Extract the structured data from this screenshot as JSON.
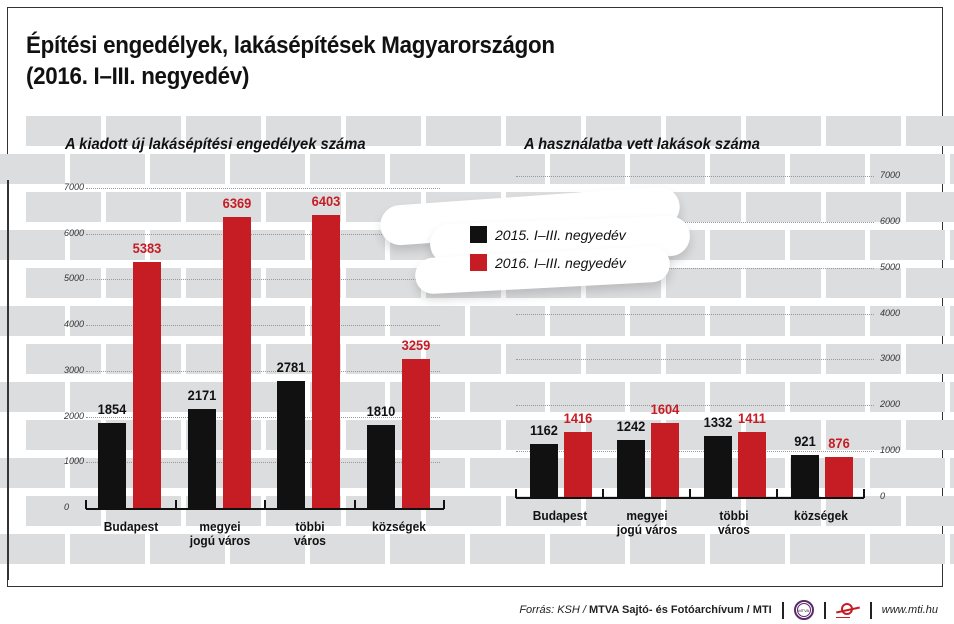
{
  "title": {
    "line1": "Építési engedélyek, lakásépítések Magyarországon",
    "line2": "(2016. I–III. negyedév)"
  },
  "legend": {
    "items": [
      {
        "label": "2015. I–III. negyedév",
        "color": "#111111"
      },
      {
        "label": "2016. I–III. negyedév",
        "color": "#c61c24"
      }
    ]
  },
  "colors": {
    "series_2015": "#111111",
    "series_2016": "#c61c24",
    "brick": "#dcdddf"
  },
  "charts": {
    "left": {
      "subtitle": "A kiadott új lakásépítési engedélyek száma",
      "ticks": [
        "0",
        "1000",
        "2000",
        "3000",
        "4000",
        "5000",
        "6000",
        "7000"
      ],
      "categories": [
        "Budapest",
        "megyei jogú város",
        "többi város",
        "községek"
      ],
      "cat_lines": [
        [
          "Budapest",
          ""
        ],
        [
          "megyei",
          "jogú város"
        ],
        [
          "többi",
          "város"
        ],
        [
          "községek",
          ""
        ]
      ],
      "v2015": [
        "1854",
        "2171",
        "2781",
        "1810"
      ],
      "v2016": [
        "5383",
        "6369",
        "6403",
        "3259"
      ]
    },
    "right": {
      "subtitle": "A használatba vett lakások száma",
      "ticks": [
        "0",
        "1000",
        "2000",
        "3000",
        "4000",
        "5000",
        "6000",
        "7000"
      ],
      "categories": [
        "Budapest",
        "megyei jogú város",
        "többi város",
        "községek"
      ],
      "cat_lines": [
        [
          "Budapest",
          ""
        ],
        [
          "megyei",
          "jogú város"
        ],
        [
          "többi",
          "város"
        ],
        [
          "községek",
          ""
        ]
      ],
      "v2015": [
        "1162",
        "1242",
        "1332",
        "921"
      ],
      "v2016": [
        "1416",
        "1604",
        "1411",
        "876"
      ]
    }
  },
  "footer": {
    "source_prefix": "Forrás: KSH /",
    "source_bold": "MTVA Sajtó- és Fotóarchívum / MTI",
    "logo1": "MTVA",
    "url": "www.mti.hu"
  },
  "chart_data": [
    {
      "type": "bar",
      "title": "A kiadott új lakásépítési engedélyek száma",
      "categories": [
        "Budapest",
        "megyei jogú város",
        "többi város",
        "községek"
      ],
      "series": [
        {
          "name": "2015. I–III. negyedév",
          "values": [
            1854,
            2171,
            2781,
            1810
          ]
        },
        {
          "name": "2016. I–III. negyedév",
          "values": [
            5383,
            6369,
            6403,
            3259
          ]
        }
      ],
      "xlabel": "",
      "ylabel": "",
      "ylim": [
        0,
        7000
      ],
      "yticks": [
        0,
        1000,
        2000,
        3000,
        4000,
        5000,
        6000,
        7000
      ],
      "grid": true,
      "legend_position": "center-top"
    },
    {
      "type": "bar",
      "title": "A használatba vett lakások száma",
      "categories": [
        "Budapest",
        "megyei jogú város",
        "többi város",
        "községek"
      ],
      "series": [
        {
          "name": "2015. I–III. negyedév",
          "values": [
            1162,
            1242,
            1332,
            921
          ]
        },
        {
          "name": "2016. I–III. negyedév",
          "values": [
            1416,
            1604,
            1411,
            876
          ]
        }
      ],
      "xlabel": "",
      "ylabel": "",
      "ylim": [
        0,
        7000
      ],
      "yticks": [
        0,
        1000,
        2000,
        3000,
        4000,
        5000,
        6000,
        7000
      ],
      "grid": true,
      "legend_position": "center-top"
    }
  ]
}
